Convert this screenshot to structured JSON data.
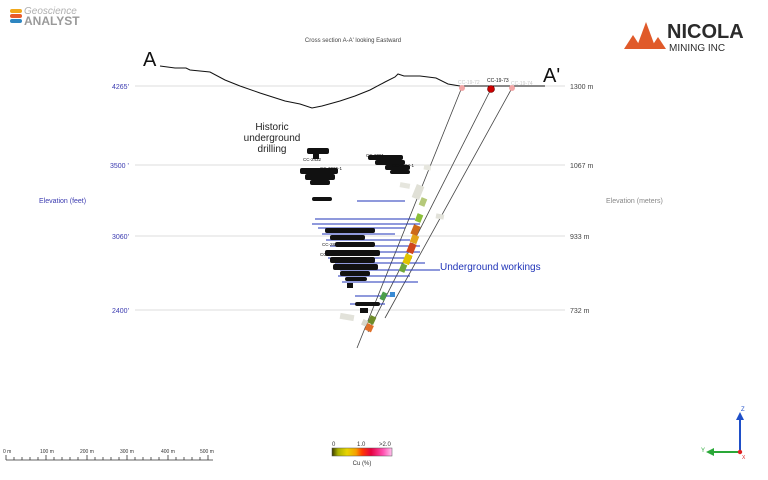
{
  "header": {
    "logo_top": "Geoscience",
    "logo_bottom": "ANALYST",
    "section_title": "Cross section A-A' looking Eastward",
    "company_line1": "NICOLA",
    "company_line2": "MINING INC"
  },
  "section": {
    "label_a": "A",
    "label_a_prime": "A'"
  },
  "elevation": {
    "left_axis_label": "Elevation (feet)",
    "right_axis_label": "Elevation (meters)",
    "levels": [
      {
        "feet": "4265'",
        "meters": "1300 m"
      },
      {
        "feet": "3500 '",
        "meters": "1067 m"
      },
      {
        "feet": "3060'",
        "meters": "933 m"
      },
      {
        "feet": "2400'",
        "meters": "732 m"
      }
    ]
  },
  "annotations": {
    "historic_line1": "Historic",
    "historic_line2": "underground",
    "historic_line3": "drilling",
    "workings": "Underground workings"
  },
  "drillholes": {
    "collars": [
      "CC-19-72",
      "CC-19-73",
      "CC-19-74"
    ],
    "historic_labels": [
      "CC-2432",
      "CC-3026-1",
      "CC-2081",
      "CC-3084-1",
      "CC-2881-1",
      "CC-1008"
    ]
  },
  "scale_bar": {
    "ticks": [
      "0 m",
      "100 m",
      "200 m",
      "300 m",
      "400 m",
      "500 m"
    ]
  },
  "legend": {
    "min": "0",
    "mid": "1.0",
    "max": ">2.0",
    "title": "Cu (%)",
    "colors": [
      "#3a3a00",
      "#a9b100",
      "#e8d400",
      "#f5a000",
      "#ff3b00",
      "#e60040",
      "#ff4fb0",
      "#ffc2ee"
    ]
  },
  "orientation": {
    "z": "Z",
    "y": "Y",
    "x": "X"
  },
  "colors": {
    "axis_text": "#3b3bb0",
    "workings": "#1f33b8",
    "logo_orange": "#e05a2a",
    "grid": "#cfcfcf"
  }
}
